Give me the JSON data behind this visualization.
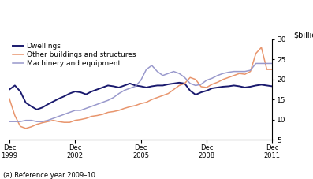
{
  "title": "",
  "ylabel_right": "$billion",
  "footnote": "(a) Reference year 2009–10",
  "ylim": [
    5,
    30
  ],
  "yticks": [
    5,
    10,
    15,
    20,
    25,
    30
  ],
  "legend": [
    "Dwellings",
    "Other buildings and structures",
    "Machinery and equipment"
  ],
  "colors": [
    "#1a1a6e",
    "#e8956d",
    "#9999cc"
  ],
  "linewidths": [
    1.4,
    1.1,
    1.1
  ],
  "xtick_labels": [
    "Dec\n1999",
    "Dec\n2002",
    "Dec\n2005",
    "Dec\n2008",
    "Dec\n2011"
  ],
  "xtick_positions": [
    0,
    12,
    24,
    36,
    48
  ],
  "dwellings": [
    17.5,
    18.5,
    17.0,
    14.2,
    13.3,
    12.5,
    13.0,
    13.8,
    14.5,
    15.2,
    15.8,
    16.5,
    17.0,
    16.8,
    16.3,
    17.0,
    17.5,
    18.0,
    18.5,
    18.3,
    18.0,
    18.5,
    19.0,
    18.5,
    18.3,
    18.0,
    18.3,
    18.5,
    18.5,
    18.8,
    19.0,
    19.2,
    19.0,
    17.2,
    16.2,
    16.8,
    17.2,
    17.8,
    18.0,
    18.2,
    18.3,
    18.5,
    18.3,
    18.0,
    18.2,
    18.5,
    18.7,
    18.5,
    18.3
  ],
  "other_buildings": [
    15.2,
    11.0,
    8.3,
    7.8,
    8.2,
    8.8,
    9.2,
    9.5,
    9.8,
    9.5,
    9.3,
    9.3,
    9.8,
    10.0,
    10.3,
    10.8,
    11.0,
    11.3,
    11.8,
    12.0,
    12.3,
    12.8,
    13.2,
    13.5,
    14.0,
    14.3,
    15.0,
    15.5,
    16.0,
    16.5,
    17.5,
    18.5,
    19.0,
    20.5,
    20.0,
    18.2,
    18.0,
    18.8,
    19.3,
    20.0,
    20.5,
    21.0,
    21.5,
    21.3,
    22.0,
    26.5,
    28.0,
    22.5,
    22.5
  ],
  "machinery": [
    9.5,
    9.5,
    9.5,
    9.8,
    9.8,
    9.5,
    9.5,
    9.8,
    10.3,
    10.8,
    11.3,
    11.8,
    12.3,
    12.3,
    12.8,
    13.3,
    13.8,
    14.3,
    14.8,
    15.5,
    16.5,
    17.3,
    17.8,
    18.3,
    19.8,
    22.5,
    23.5,
    22.0,
    21.0,
    21.5,
    22.0,
    21.5,
    20.5,
    19.0,
    18.5,
    18.8,
    19.8,
    20.3,
    21.0,
    21.5,
    21.8,
    22.0,
    22.0,
    22.0,
    22.3,
    24.0,
    24.0,
    24.0,
    24.0
  ]
}
